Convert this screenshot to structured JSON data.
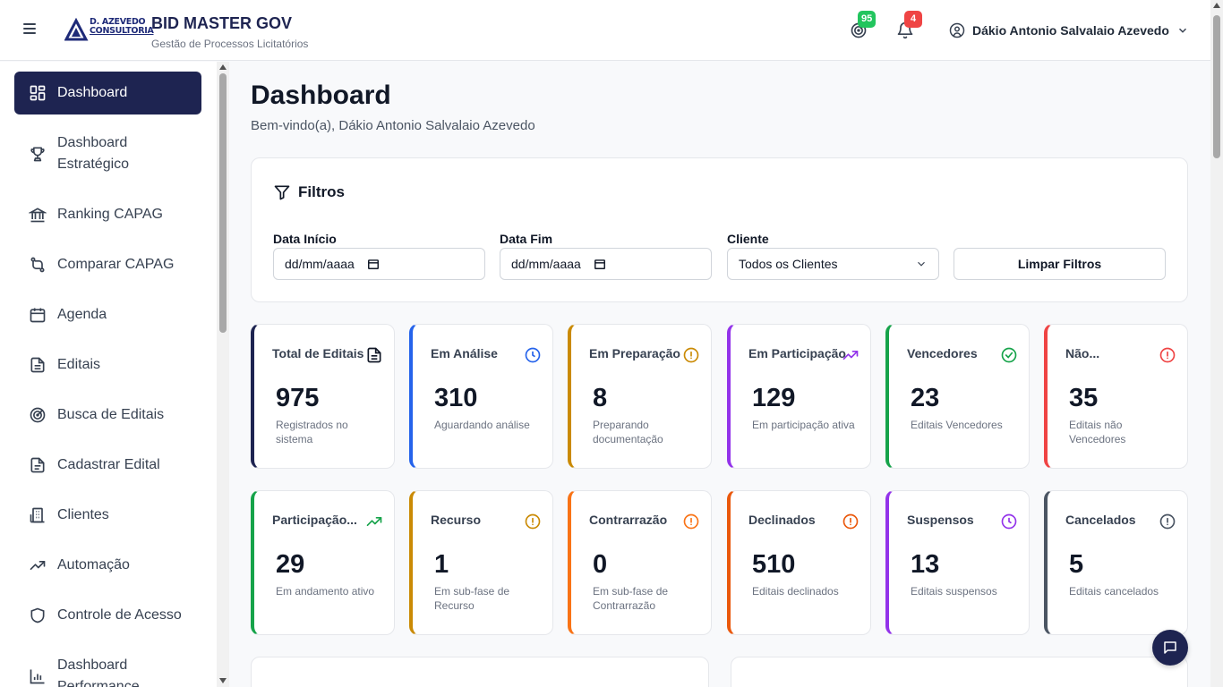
{
  "header": {
    "logo_line1": "D. AZEVEDO",
    "logo_line2": "CONSULTORIA",
    "app_title": "BID MASTER GOV",
    "app_subtitle": "Gestão de Processos Licitatórios",
    "target_badge": "95",
    "bell_badge": "4",
    "user_name": "Dákio Antonio Salvalaio Azevedo"
  },
  "sidebar": {
    "items": [
      {
        "label": "Dashboard",
        "icon": "dashboard-icon"
      },
      {
        "label": "Dashboard Estratégico",
        "icon": "trophy-icon"
      },
      {
        "label": "Ranking CAPAG",
        "icon": "bank-icon"
      },
      {
        "label": "Comparar CAPAG",
        "icon": "compare-icon"
      },
      {
        "label": "Agenda",
        "icon": "calendar-icon"
      },
      {
        "label": "Editais",
        "icon": "document-icon"
      },
      {
        "label": "Busca de Editais",
        "icon": "radar-icon"
      },
      {
        "label": "Cadastrar Edital",
        "icon": "document-add-icon"
      },
      {
        "label": "Clientes",
        "icon": "building-icon"
      },
      {
        "label": "Automação",
        "icon": "trend-icon"
      },
      {
        "label": "Controle de Acesso",
        "icon": "shield-icon"
      },
      {
        "label": "Dashboard Performance",
        "icon": "bar-chart-icon"
      }
    ]
  },
  "main": {
    "title": "Dashboard",
    "welcome": "Bem-vindo(a), Dákio Antonio Salvalaio Azevedo"
  },
  "filters": {
    "title": "Filtros",
    "start_label": "Data Início",
    "start_value": "dd/mm/aaaa",
    "end_label": "Data Fim",
    "end_value": "dd/mm/aaaa",
    "client_label": "Cliente",
    "client_value": "Todos os Clientes",
    "clear_label": "Limpar Filtros"
  },
  "cards": [
    {
      "title": "Total de Editais",
      "value": "975",
      "desc": "Registrados no sistema",
      "color": "#1e2451",
      "icon": "document-icon"
    },
    {
      "title": "Em Análise",
      "value": "310",
      "desc": "Aguardando análise",
      "color": "#2563eb",
      "icon": "clock-icon"
    },
    {
      "title": "Em Preparação",
      "value": "8",
      "desc": "Preparando documentação",
      "color": "#ca8a04",
      "icon": "alert-icon"
    },
    {
      "title": "Em Participação",
      "value": "129",
      "desc": "Em participação ativa",
      "color": "#9333ea",
      "icon": "trend-up-icon"
    },
    {
      "title": "Vencedores",
      "value": "23",
      "desc": "Editais Vencedores",
      "color": "#16a34a",
      "icon": "check-circle-icon"
    },
    {
      "title": "Não...",
      "value": "35",
      "desc": "Editais não Vencedores",
      "color": "#ef4444",
      "icon": "alert-icon"
    },
    {
      "title": "Participação...",
      "value": "29",
      "desc": "Em andamento ativo",
      "color": "#16a34a",
      "icon": "trend-up-icon"
    },
    {
      "title": "Recurso",
      "value": "1",
      "desc": "Em sub-fase de Recurso",
      "color": "#ca8a04",
      "icon": "alert-icon"
    },
    {
      "title": "Contrarrazão",
      "value": "0",
      "desc": "Em sub-fase de Contrarrazão",
      "color": "#f97316",
      "icon": "alert-icon"
    },
    {
      "title": "Declinados",
      "value": "510",
      "desc": "Editais declinados",
      "color": "#ea580c",
      "icon": "alert-icon"
    },
    {
      "title": "Suspensos",
      "value": "13",
      "desc": "Editais suspensos",
      "color": "#9333ea",
      "icon": "clock-icon"
    },
    {
      "title": "Cancelados",
      "value": "5",
      "desc": "Editais cancelados",
      "color": "#4b5563",
      "icon": "alert-icon"
    }
  ]
}
